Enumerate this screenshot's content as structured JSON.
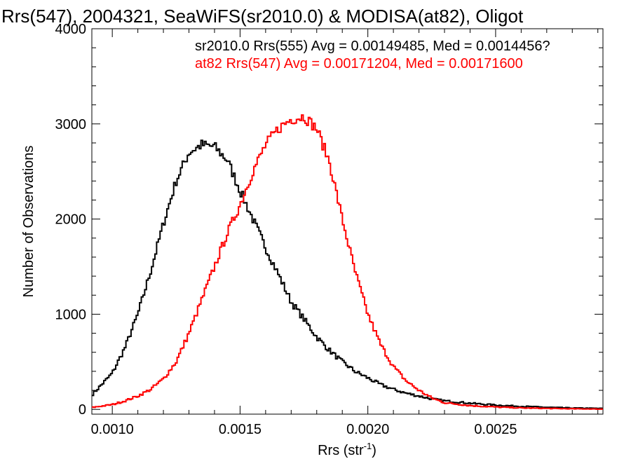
{
  "chart_data": {
    "type": "histogram",
    "title": "Rrs(547), 2004321, SeaWiFS(sr2010.0) & MODISA(at82), Oligot",
    "xlabel": "Rrs (str",
    "xlabel_sup": "-1",
    "xlabel_close": ")",
    "ylabel": "Number of Observations",
    "xlim": [
      0.00092,
      0.00292
    ],
    "ylim": [
      -50,
      4000
    ],
    "x_ticks": [
      0.001,
      0.0015,
      0.002,
      0.0025
    ],
    "x_tick_labels": [
      "0.0010",
      "0.0015",
      "0.0020",
      "0.0025"
    ],
    "y_ticks": [
      0,
      1000,
      2000,
      3000,
      4000
    ],
    "y_tick_labels": [
      "0",
      "1000",
      "2000",
      "3000",
      "4000"
    ],
    "bin_width": 6.67e-06,
    "grid": false,
    "annotations": [
      {
        "text": "sr2010.0 Rrs(555) Avg = 0.00149485, Med = 0.0014456?",
        "color": "#000000"
      },
      {
        "text": "at82 Rrs(547) Avg = 0.00171204, Med = 0.00171600",
        "color": "#ff0000"
      }
    ],
    "series": [
      {
        "color": "#000000",
        "curve": [
          [
            0.00092,
            150
          ],
          [
            0.001,
            380
          ],
          [
            0.00105,
            650
          ],
          [
            0.0011,
            1000
          ],
          [
            0.00115,
            1450
          ],
          [
            0.0012,
            1950
          ],
          [
            0.00125,
            2400
          ],
          [
            0.0013,
            2700
          ],
          [
            0.00135,
            2780
          ],
          [
            0.0014,
            2760
          ],
          [
            0.00145,
            2620
          ],
          [
            0.0015,
            2300
          ],
          [
            0.00155,
            2000
          ],
          [
            0.0016,
            1700
          ],
          [
            0.00165,
            1420
          ],
          [
            0.0017,
            1130
          ],
          [
            0.00175,
            950
          ],
          [
            0.0018,
            760
          ],
          [
            0.00185,
            620
          ],
          [
            0.0019,
            500
          ],
          [
            0.00195,
            400
          ],
          [
            0.002,
            330
          ],
          [
            0.00205,
            260
          ],
          [
            0.0021,
            210
          ],
          [
            0.00215,
            170
          ],
          [
            0.0022,
            140
          ],
          [
            0.00225,
            110
          ],
          [
            0.0023,
            90
          ],
          [
            0.0024,
            65
          ],
          [
            0.0025,
            45
          ],
          [
            0.0026,
            32
          ],
          [
            0.0027,
            22
          ],
          [
            0.0028,
            14
          ],
          [
            0.00292,
            10
          ]
        ]
      },
      {
        "color": "#ff0000",
        "curve": [
          [
            0.00092,
            20
          ],
          [
            0.001,
            50
          ],
          [
            0.00105,
            90
          ],
          [
            0.0011,
            140
          ],
          [
            0.00115,
            210
          ],
          [
            0.0012,
            320
          ],
          [
            0.00125,
            500
          ],
          [
            0.0013,
            800
          ],
          [
            0.00135,
            1150
          ],
          [
            0.0014,
            1500
          ],
          [
            0.00145,
            1850
          ],
          [
            0.0015,
            2150
          ],
          [
            0.00155,
            2500
          ],
          [
            0.0016,
            2780
          ],
          [
            0.00165,
            2950
          ],
          [
            0.0017,
            3050
          ],
          [
            0.00175,
            3080
          ],
          [
            0.0018,
            2950
          ],
          [
            0.00185,
            2600
          ],
          [
            0.0019,
            2000
          ],
          [
            0.00195,
            1450
          ],
          [
            0.002,
            1000
          ],
          [
            0.00205,
            680
          ],
          [
            0.0021,
            450
          ],
          [
            0.00215,
            300
          ],
          [
            0.0022,
            200
          ],
          [
            0.00225,
            120
          ],
          [
            0.0023,
            70
          ],
          [
            0.0024,
            40
          ],
          [
            0.0025,
            25
          ],
          [
            0.0026,
            15
          ],
          [
            0.0027,
            10
          ],
          [
            0.0028,
            6
          ],
          [
            0.00292,
            3
          ]
        ]
      }
    ]
  }
}
